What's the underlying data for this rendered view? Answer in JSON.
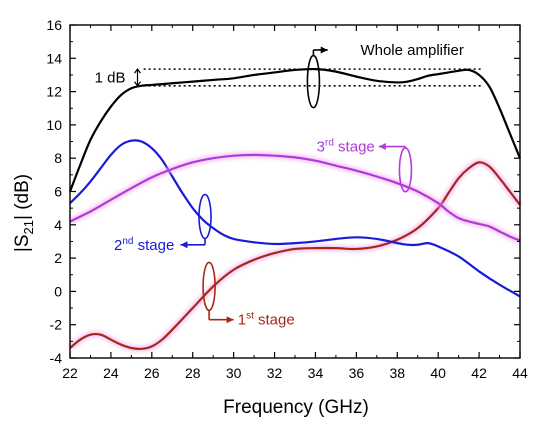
{
  "chart_data": {
    "type": "line",
    "xlabel": "Frequency (GHz)",
    "ylabel_main": "|S",
    "ylabel_sub": "21",
    "ylabel_tail": "| (dB)",
    "xlim": [
      22,
      44
    ],
    "ylim": [
      -4,
      16
    ],
    "x_ticks": [
      "22",
      "24",
      "26",
      "28",
      "30",
      "32",
      "34",
      "36",
      "38",
      "40",
      "42",
      "44"
    ],
    "y_ticks": [
      "-4",
      "-2",
      "0",
      "2",
      "4",
      "6",
      "8",
      "10",
      "12",
      "14",
      "16"
    ],
    "series": [
      {
        "key": "whole",
        "color": "#000000",
        "glow": false,
        "x": [
          22,
          22.5,
          23,
          23.5,
          24,
          24.5,
          25,
          25.5,
          26,
          26.5,
          27,
          28,
          29,
          30,
          31,
          32,
          33,
          34,
          35,
          36,
          37,
          38,
          38.5,
          39,
          39.5,
          40,
          40.5,
          41,
          41.5,
          42,
          42.5,
          43,
          43.5,
          44
        ],
        "y": [
          6.0,
          7.6,
          9.1,
          10.2,
          11.1,
          11.8,
          12.2,
          12.35,
          12.4,
          12.45,
          12.5,
          12.6,
          12.7,
          12.8,
          13.0,
          13.15,
          13.3,
          13.35,
          13.2,
          12.9,
          12.65,
          12.55,
          12.6,
          12.75,
          12.95,
          13.05,
          13.15,
          13.25,
          13.3,
          13.0,
          12.3,
          11.0,
          9.5,
          8.0
        ]
      },
      {
        "key": "stage1",
        "color": "#a82818",
        "glow": true,
        "x": [
          22,
          22.5,
          23,
          23.5,
          24,
          24.5,
          25,
          25.5,
          26,
          26.5,
          27,
          28,
          29,
          30,
          31,
          32,
          33,
          34,
          35,
          36,
          37,
          38,
          39,
          40,
          40.5,
          41,
          41.5,
          42,
          42.5,
          43,
          43.5,
          44
        ],
        "y": [
          -3.4,
          -2.9,
          -2.6,
          -2.6,
          -2.9,
          -3.2,
          -3.4,
          -3.45,
          -3.3,
          -2.9,
          -2.3,
          -1.0,
          0.3,
          1.3,
          1.9,
          2.3,
          2.55,
          2.6,
          2.6,
          2.55,
          2.7,
          3.1,
          3.8,
          5.0,
          5.9,
          6.8,
          7.4,
          7.75,
          7.5,
          6.8,
          6.0,
          5.2
        ]
      },
      {
        "key": "stage2",
        "color": "#1a1adc",
        "glow": false,
        "x": [
          22,
          22.5,
          23,
          23.5,
          24,
          24.5,
          25,
          25.5,
          26,
          26.5,
          27,
          27.5,
          28,
          28.5,
          29,
          29.5,
          30,
          31,
          32,
          33,
          34,
          35,
          36,
          37,
          38,
          38.5,
          39,
          39.5,
          40,
          41,
          42,
          43,
          44
        ],
        "y": [
          5.3,
          5.9,
          6.6,
          7.4,
          8.2,
          8.8,
          9.05,
          9.0,
          8.6,
          7.9,
          6.9,
          5.9,
          5.0,
          4.3,
          3.8,
          3.4,
          3.15,
          2.95,
          2.85,
          2.9,
          3.0,
          3.15,
          3.25,
          3.15,
          2.9,
          2.8,
          2.8,
          2.9,
          2.7,
          2.1,
          1.2,
          0.4,
          -0.3
        ]
      },
      {
        "key": "stage3",
        "color": "#b23ad8",
        "glow": true,
        "x": [
          22,
          23,
          24,
          25,
          26,
          27,
          28,
          29,
          30,
          31,
          32,
          33,
          34,
          35,
          36,
          37,
          38,
          39,
          40,
          40.5,
          41,
          41.5,
          42,
          42.5,
          43,
          43.5,
          44
        ],
        "y": [
          4.2,
          4.8,
          5.5,
          6.2,
          6.85,
          7.35,
          7.75,
          8.0,
          8.15,
          8.2,
          8.15,
          8.05,
          7.85,
          7.55,
          7.25,
          6.9,
          6.5,
          6.0,
          5.3,
          4.8,
          4.4,
          4.2,
          4.05,
          3.9,
          3.6,
          3.3,
          3.05
        ]
      }
    ],
    "annotations": {
      "whole": {
        "text": "Whole amplifier"
      },
      "stage3": {
        "sup": "rd",
        "pre": "3",
        "post": " stage"
      },
      "stage2": {
        "sup": "nd",
        "pre": "2",
        "post": " stage"
      },
      "stage1": {
        "sup": "st",
        "pre": "1",
        "post": " stage"
      },
      "one_db": {
        "text": "1 dB"
      }
    }
  }
}
